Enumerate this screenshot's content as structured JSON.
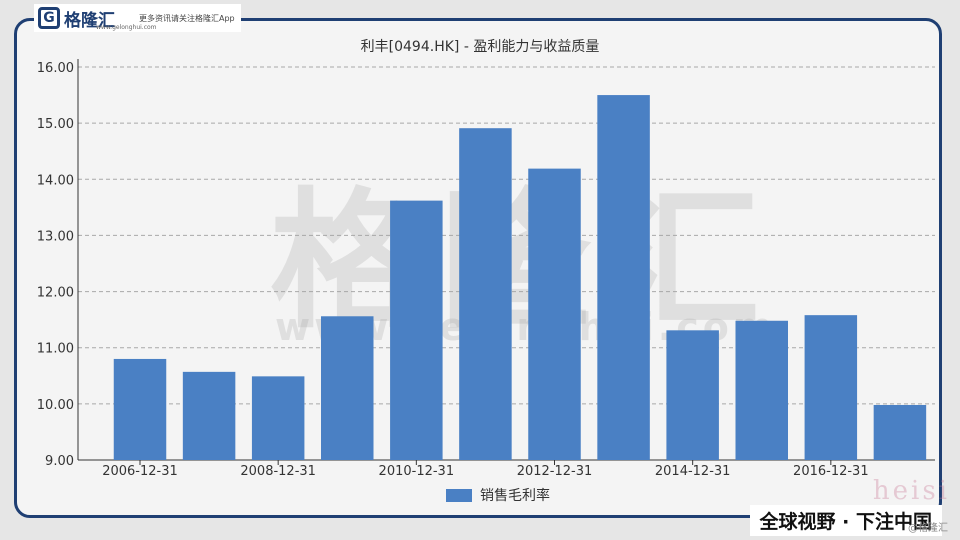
{
  "brand": {
    "logo_letter": "G",
    "name": "格隆汇",
    "url": "www.gelonghui.com",
    "slogan": "更多资讯请关注格隆汇App"
  },
  "watermark": {
    "text": "格隆汇",
    "url": "www.gelonghui.com"
  },
  "footer": {
    "slogan": "全球视野 · 下注中国",
    "corner_mark": "heisi",
    "corner_sub": "@格隆汇"
  },
  "colors": {
    "bar": "#4a80c4",
    "frame": "#1f3f73"
  },
  "chart_data": {
    "type": "bar",
    "title": "利丰[0494.HK] - 盈利能力与收益质量",
    "categories": [
      "2006-12-31",
      "2007-12-31",
      "2008-12-31",
      "2009-12-31",
      "2010-12-31",
      "2011-12-31",
      "2012-12-31",
      "2013-12-31",
      "2014-12-31",
      "2015-12-31",
      "2016-12-31",
      "2017-12-31"
    ],
    "x_tick_labels": [
      "2006-12-31",
      "2008-12-31",
      "2010-12-31",
      "2012-12-31",
      "2014-12-31",
      "2016-12-31"
    ],
    "series": [
      {
        "name": "销售毛利率",
        "values": [
          10.8,
          10.57,
          10.49,
          11.56,
          13.62,
          14.91,
          14.19,
          15.5,
          11.31,
          11.48,
          11.58,
          9.98
        ]
      }
    ],
    "ylim": [
      9.0,
      16.0
    ],
    "y_ticks": [
      "9.00",
      "10.00",
      "11.00",
      "12.00",
      "13.00",
      "14.00",
      "15.00",
      "16.00"
    ],
    "grid": true,
    "legend_position": "bottom"
  }
}
